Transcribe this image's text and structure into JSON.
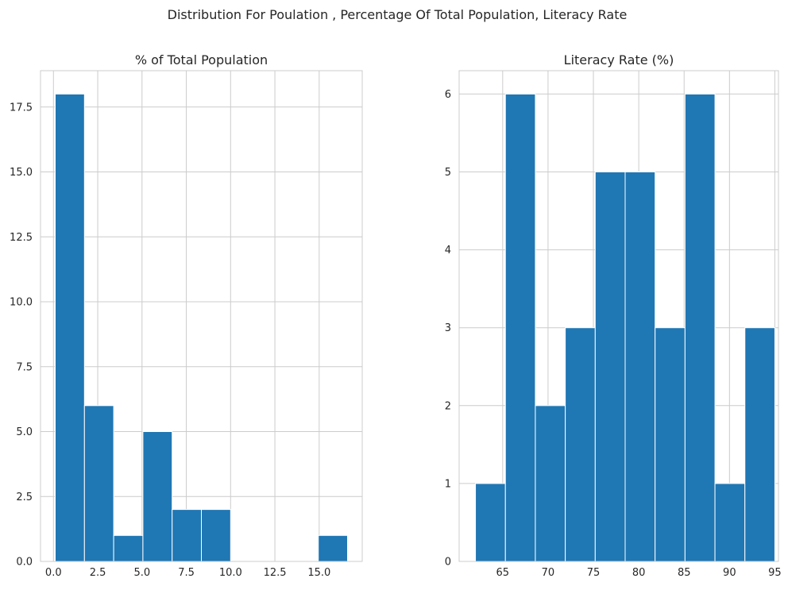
{
  "figure": {
    "suptitle": "Distribution For Poulation , Percentage Of Total Population, Literacy Rate"
  },
  "colors": {
    "bar": "#1f77b4",
    "bar_edge": "#ffffff",
    "grid": "#cccccc",
    "frame": "#cccccc",
    "text": "#262626",
    "background": "#ffffff"
  },
  "chart_data": [
    {
      "type": "bar",
      "subtype": "histogram",
      "title": "% of Total Population",
      "xlabel": "",
      "ylabel": "",
      "bin_edges": [
        0.1,
        1.75,
        3.4,
        5.05,
        6.7,
        8.35,
        10.0,
        11.65,
        13.3,
        14.95,
        16.6
      ],
      "counts": [
        18,
        6,
        1,
        5,
        2,
        2,
        0,
        0,
        0,
        1
      ],
      "xlim": [
        -0.73,
        17.43
      ],
      "ylim": [
        0,
        18.9
      ],
      "xticks": [
        0.0,
        2.5,
        5.0,
        7.5,
        10.0,
        12.5,
        15.0
      ],
      "xtick_labels": [
        "0.0",
        "2.5",
        "5.0",
        "7.5",
        "10.0",
        "12.5",
        "15.0"
      ],
      "yticks": [
        0.0,
        2.5,
        5.0,
        7.5,
        10.0,
        12.5,
        15.0,
        17.5
      ],
      "ytick_labels": [
        "0.0",
        "2.5",
        "5.0",
        "7.5",
        "10.0",
        "12.5",
        "15.0",
        "17.5"
      ],
      "grid": true,
      "legend": "none"
    },
    {
      "type": "bar",
      "subtype": "histogram",
      "title": "Literacy Rate (%)",
      "xlabel": "",
      "ylabel": "",
      "bin_edges": [
        62,
        65.3,
        68.6,
        71.9,
        75.2,
        78.5,
        81.8,
        85.1,
        88.4,
        91.7,
        95.0
      ],
      "counts": [
        1,
        6,
        2,
        3,
        5,
        5,
        3,
        6,
        1,
        3
      ],
      "xlim": [
        60.2,
        95.4
      ],
      "ylim": [
        0,
        6.3
      ],
      "xticks": [
        65,
        70,
        75,
        80,
        85,
        90,
        95
      ],
      "xtick_labels": [
        "65",
        "70",
        "75",
        "80",
        "85",
        "90",
        "95"
      ],
      "yticks": [
        0,
        1,
        2,
        3,
        4,
        5,
        6
      ],
      "ytick_labels": [
        "0",
        "1",
        "2",
        "3",
        "4",
        "5",
        "6"
      ],
      "grid": true,
      "legend": "none"
    }
  ]
}
